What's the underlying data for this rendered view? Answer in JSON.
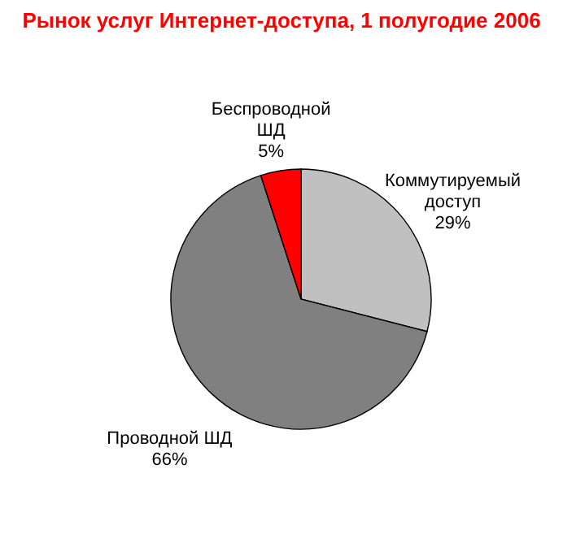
{
  "chart_data": {
    "type": "pie",
    "title": "Рынок услуг Интернет-доступа, 1 полугодие 2006",
    "categories": [
      "Коммутируемый доступ",
      "Проводной ШД",
      "Беспроводной ШД"
    ],
    "values": [
      29,
      66,
      5
    ],
    "colors": [
      "#c0c0c0",
      "#808080",
      "#ff0000"
    ],
    "value_labels": [
      "29%",
      "66%",
      "5%"
    ]
  }
}
